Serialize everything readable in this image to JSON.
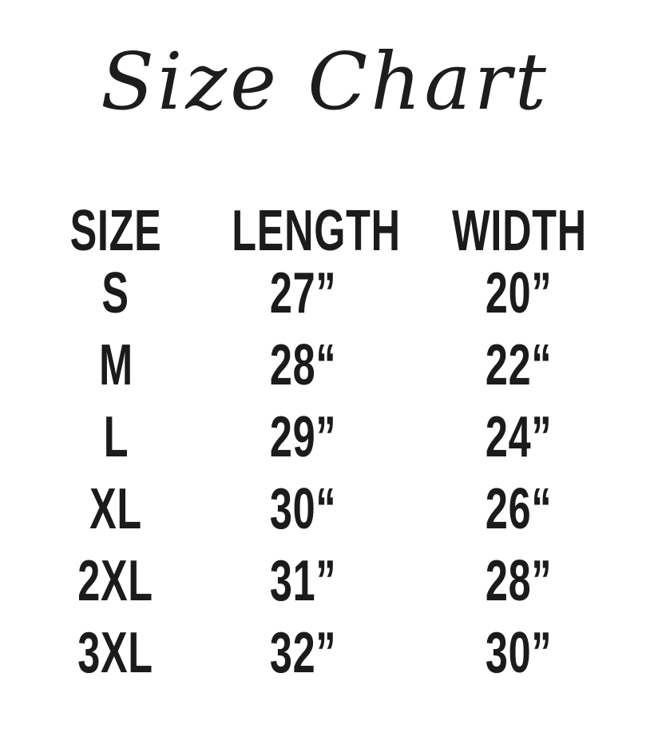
{
  "page": {
    "background": "#ffffff",
    "ink_color": "#1b1b1b"
  },
  "title": "Size Chart",
  "chart_data": {
    "type": "table",
    "title": "Size Chart",
    "columns": [
      "SIZE",
      "LENGTH",
      "WIDTH"
    ],
    "rows": [
      {
        "size": "S",
        "length": "27”",
        "width": "20”"
      },
      {
        "size": "M",
        "length": "28“",
        "width": "22“"
      },
      {
        "size": "L",
        "length": "29”",
        "width": "24”"
      },
      {
        "size": "XL",
        "length": "30“",
        "width": "26“"
      },
      {
        "size": "2XL",
        "length": "31”",
        "width": "28”"
      },
      {
        "size": "3XL",
        "length": "32”",
        "width": "30”"
      }
    ],
    "units": "inches",
    "layout": {
      "grid": "off",
      "borders": "none"
    }
  }
}
